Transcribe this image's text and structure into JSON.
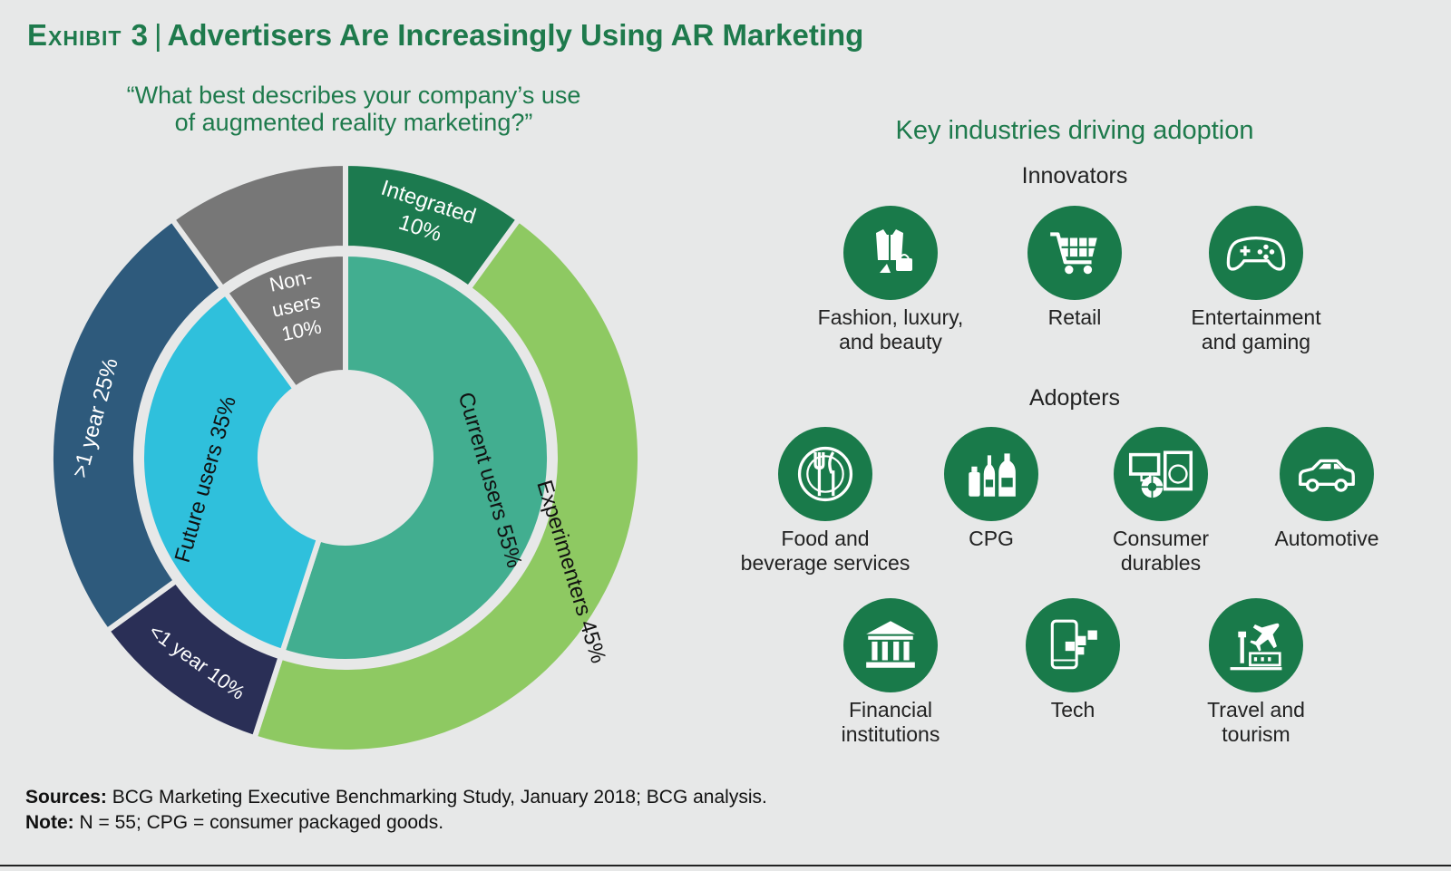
{
  "header": {
    "exhibit": "Exhibit 3",
    "separator": "|",
    "title": "Advertisers Are Increasingly Using AR Marketing"
  },
  "question": {
    "line1": "“What best describes your company’s use",
    "line2": "of augmented reality marketing?”"
  },
  "chart_data": {
    "type": "pie",
    "subtype": "nested-donut",
    "inner_ring": [
      {
        "name": "Current users",
        "value": 55,
        "label": "Current users 55%",
        "color": "#42ae90"
      },
      {
        "name": "Future users",
        "value": 35,
        "label": "Future users 35%",
        "color": "#2fc0dc"
      },
      {
        "name": "Non-users",
        "value": 10,
        "label_lines": [
          "Non-",
          "users",
          "10%"
        ],
        "color": "#777777"
      }
    ],
    "outer_ring": [
      {
        "name": "Integrated",
        "value": 10,
        "label_lines": [
          "Integrated",
          "10%"
        ],
        "color": "#1c7a4f"
      },
      {
        "name": "Experimenters",
        "value": 45,
        "label": "Experimenters 45%",
        "color": "#8ec962"
      },
      {
        "name": "<1 year",
        "value": 10,
        "label": "<1 year 10%",
        "color": "#2a2f56"
      },
      {
        "name": ">1 year",
        "value": 25,
        "label": ">1 year 25%",
        "color": "#2e5a7c"
      },
      {
        "name": "Non-users",
        "value": 10,
        "label": "",
        "color": "#777777"
      }
    ]
  },
  "industries": {
    "title": "Key industries driving adoption",
    "innovators_label": "Innovators",
    "adopters_label": "Adopters",
    "innovators": [
      {
        "icon": "fashion-icon",
        "lines": [
          "Fashion, luxury,",
          "and beauty"
        ]
      },
      {
        "icon": "shopping-cart-icon",
        "lines": [
          "Retail"
        ]
      },
      {
        "icon": "game-controller-icon",
        "lines": [
          "Entertainment",
          "and gaming"
        ]
      }
    ],
    "adopters": [
      {
        "icon": "plate-cutlery-icon",
        "lines": [
          "Food and",
          "beverage services"
        ]
      },
      {
        "icon": "bottles-icon",
        "lines": [
          "CPG"
        ]
      },
      {
        "icon": "appliances-icon",
        "lines": [
          "Consumer",
          "durables"
        ]
      },
      {
        "icon": "car-icon",
        "lines": [
          "Automotive"
        ]
      },
      {
        "icon": "bank-icon",
        "lines": [
          "Financial",
          "institutions"
        ]
      },
      {
        "icon": "smartphone-icon",
        "lines": [
          "Tech"
        ]
      },
      {
        "icon": "airplane-icon",
        "lines": [
          "Travel and",
          "tourism"
        ]
      }
    ],
    "icon_color": "#197a4a"
  },
  "footer": {
    "sources_label": "Sources:",
    "sources_text": " BCG Marketing Executive Benchmarking Study, January 2018; BCG analysis.",
    "note_label": "Note:",
    "note_text": " N = 55; CPG = consumer packaged goods."
  }
}
